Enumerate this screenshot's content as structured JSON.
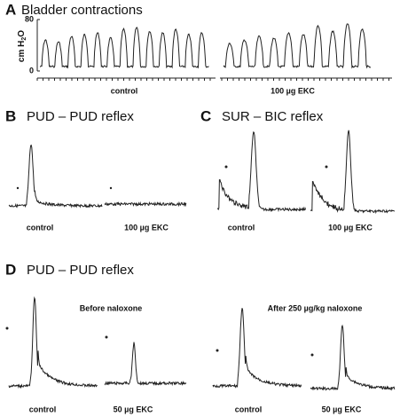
{
  "panels": [
    {
      "letter": "A",
      "title": "Bladder contractions",
      "y_label": [
        "cm H",
        "2",
        "O"
      ],
      "yticks": [
        0,
        80
      ],
      "conditions": [
        "control",
        "100 µg EKC"
      ]
    },
    {
      "letter": "B",
      "title": "PUD – PUD reflex",
      "conditions": [
        "control",
        "100 µg EKC"
      ]
    },
    {
      "letter": "C",
      "title": "SUR – BIC reflex",
      "conditions": [
        "control",
        "100 µg EKC"
      ]
    },
    {
      "letter": "D",
      "title": "PUD – PUD reflex",
      "subtitles": [
        "Before naloxone",
        "After 250 µg/kg naloxone"
      ],
      "conditions": [
        "control",
        "50 µg EKC",
        "control",
        "50 µg EKC"
      ]
    }
  ]
}
